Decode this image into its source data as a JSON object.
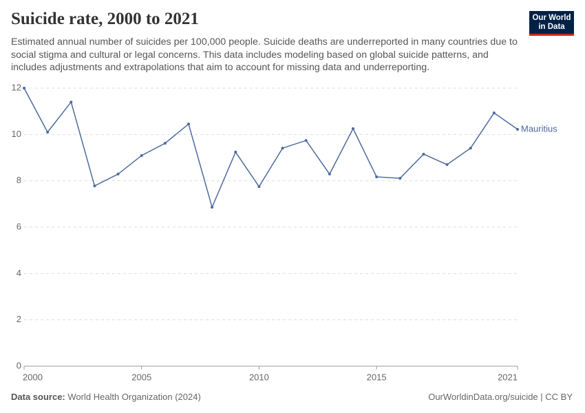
{
  "logo": [
    "Our World",
    "in Data"
  ],
  "chart_data": {
    "type": "line",
    "title": "Suicide rate, 2000 to 2021",
    "subtitle": "Estimated annual number of suicides per 100,000 people. Suicide deaths are underreported in many countries due to social stigma and cultural or legal concerns. This data includes modeling based on global suicide patterns, and includes adjustments and extrapolations that aim to account for missing data and underreporting.",
    "source_label": "Data source:",
    "source": "World Health Organization (2024)",
    "footer_right": "OurWorldinData.org/suicide | CC BY",
    "x": [
      2000,
      2001,
      2002,
      2003,
      2004,
      2005,
      2006,
      2007,
      2008,
      2009,
      2010,
      2011,
      2012,
      2013,
      2014,
      2015,
      2016,
      2017,
      2018,
      2019,
      2020,
      2021
    ],
    "series": [
      {
        "name": "Mauritius",
        "color": "#4c6a9c",
        "values": [
          12.0,
          10.1,
          11.4,
          7.78,
          8.29,
          9.09,
          9.62,
          10.45,
          6.86,
          9.24,
          7.75,
          9.41,
          9.74,
          8.29,
          10.25,
          8.17,
          8.11,
          9.15,
          8.7,
          9.41,
          10.93,
          10.22
        ]
      }
    ],
    "xlim": [
      2000,
      2021
    ],
    "xticks": [
      2000,
      2005,
      2010,
      2015,
      2021
    ],
    "ylim": [
      0,
      12
    ],
    "yticks": [
      0,
      2,
      4,
      6,
      8,
      10,
      12
    ],
    "grid": true
  }
}
